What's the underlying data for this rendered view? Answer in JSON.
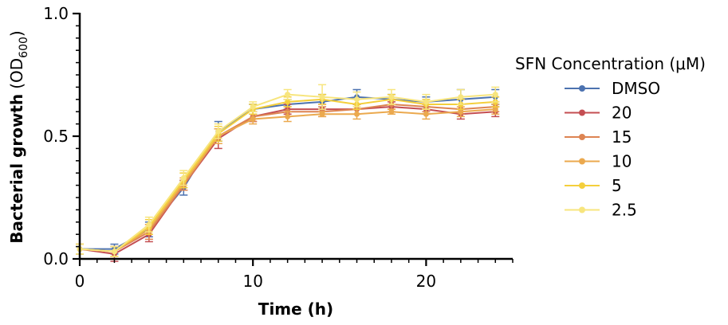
{
  "chart_data": {
    "type": "line",
    "xlabel": "Time (h)",
    "ylabel": "Bacterial growth",
    "ylabel_unit": "(OD",
    "ylabel_unit_sub": "600",
    "ylabel_unit_close": ")",
    "xlim": [
      0,
      25
    ],
    "ylim": [
      0,
      1.0
    ],
    "x_ticks": [
      0,
      10,
      20
    ],
    "x_tick_labels": [
      "0",
      "10",
      "20"
    ],
    "y_ticks": [
      0,
      0.5,
      1.0
    ],
    "y_tick_labels": [
      "0.0",
      "0.5",
      "1.0"
    ],
    "legend_title": "SFN Concentration (μM)",
    "legend_position": "right",
    "x": [
      0,
      2,
      4,
      6,
      8,
      10,
      12,
      14,
      16,
      18,
      20,
      22,
      24
    ],
    "series": [
      {
        "name": "DMSO",
        "color": "#4c72b0",
        "values": [
          0.04,
          0.04,
          0.12,
          0.29,
          0.52,
          0.61,
          0.63,
          0.64,
          0.66,
          0.65,
          0.64,
          0.65,
          0.66
        ],
        "errors": [
          0.02,
          0.02,
          0.03,
          0.03,
          0.04,
          0.02,
          0.02,
          0.03,
          0.03,
          0.02,
          0.02,
          0.04,
          0.03
        ]
      },
      {
        "name": "20",
        "color": "#c44e52",
        "values": [
          0.04,
          0.02,
          0.1,
          0.3,
          0.49,
          0.58,
          0.61,
          0.61,
          0.61,
          0.62,
          0.61,
          0.59,
          0.6
        ],
        "errors": [
          0.02,
          0.03,
          0.03,
          0.02,
          0.04,
          0.02,
          0.02,
          0.02,
          0.02,
          0.02,
          0.02,
          0.02,
          0.02
        ]
      },
      {
        "name": "15",
        "color": "#dd8452",
        "values": [
          0.04,
          0.03,
          0.11,
          0.3,
          0.5,
          0.58,
          0.6,
          0.6,
          0.61,
          0.63,
          0.62,
          0.61,
          0.62
        ],
        "errors": [
          0.02,
          0.02,
          0.03,
          0.02,
          0.03,
          0.02,
          0.02,
          0.02,
          0.02,
          0.02,
          0.02,
          0.02,
          0.02
        ]
      },
      {
        "name": "10",
        "color": "#eba94e",
        "values": [
          0.04,
          0.03,
          0.12,
          0.31,
          0.5,
          0.57,
          0.58,
          0.59,
          0.59,
          0.6,
          0.59,
          0.6,
          0.61
        ],
        "errors": [
          0.02,
          0.02,
          0.02,
          0.02,
          0.03,
          0.02,
          0.02,
          0.01,
          0.02,
          0.01,
          0.02,
          0.02,
          0.02
        ]
      },
      {
        "name": "5",
        "color": "#f4cf3c",
        "values": [
          0.04,
          0.03,
          0.13,
          0.32,
          0.51,
          0.61,
          0.64,
          0.65,
          0.63,
          0.65,
          0.63,
          0.63,
          0.64
        ],
        "errors": [
          0.02,
          0.02,
          0.03,
          0.03,
          0.03,
          0.02,
          0.02,
          0.02,
          0.02,
          0.02,
          0.02,
          0.02,
          0.02
        ]
      },
      {
        "name": "2.5",
        "color": "#f7e57e",
        "values": [
          0.04,
          0.03,
          0.14,
          0.33,
          0.52,
          0.62,
          0.67,
          0.66,
          0.65,
          0.66,
          0.64,
          0.66,
          0.67
        ],
        "errors": [
          0.02,
          0.02,
          0.03,
          0.03,
          0.03,
          0.02,
          0.02,
          0.05,
          0.03,
          0.03,
          0.03,
          0.03,
          0.03
        ]
      }
    ]
  }
}
